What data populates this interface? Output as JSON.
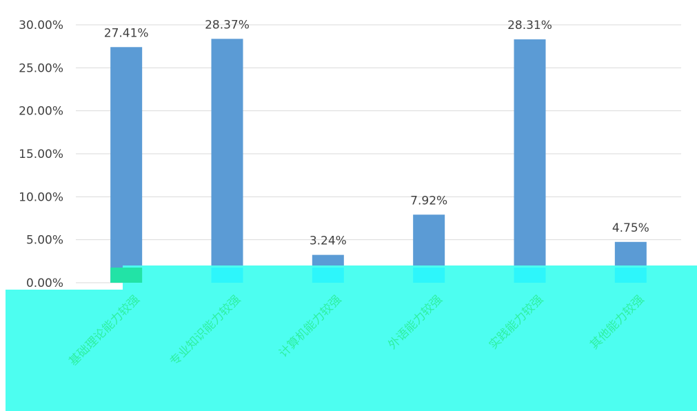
{
  "chart_data": {
    "type": "bar",
    "categories": [
      "基础理论能力较强",
      "专业知识能力较强",
      "计算机能力较强",
      "外语能力较强",
      "实践能力较强",
      "其他能力较强"
    ],
    "values": [
      27.41,
      28.37,
      3.24,
      7.92,
      28.31,
      4.75
    ],
    "data_labels": [
      "27.41%",
      "28.37%",
      "3.24%",
      "7.92%",
      "28.31%",
      "4.75%"
    ],
    "y_ticks": [
      "0.00%",
      "5.00%",
      "10.00%",
      "15.00%",
      "20.00%",
      "25.00%",
      "30.00%"
    ],
    "ylim": [
      0,
      30
    ],
    "grid": true,
    "colors": {
      "bar": "#5b9bd5",
      "grid": "#d9d9d9",
      "overlay": "#4dfef0",
      "text": "#404040"
    }
  }
}
